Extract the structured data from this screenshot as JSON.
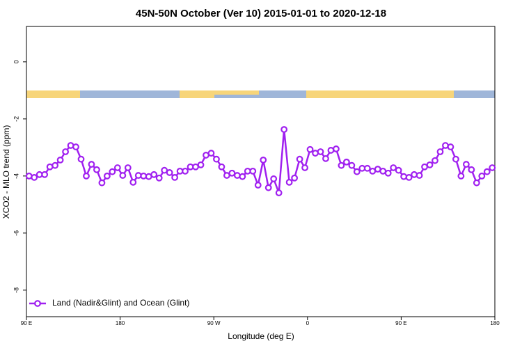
{
  "chart_data": {
    "type": "line",
    "title": "45N-50N October (Ver 10)   2015-01-01 to 2020-12-18",
    "xlabel": "Longitude (deg E)",
    "ylabel": "XCO2 - MLO trend (ppm)",
    "x": [
      92.5,
      97.5,
      102.5,
      107.5,
      112.5,
      117.5,
      122.5,
      127.5,
      132.5,
      137.5,
      142.5,
      147.5,
      152.5,
      157.5,
      162.5,
      167.5,
      172.5,
      177.5,
      182.5,
      187.5,
      192.5,
      197.5,
      202.5,
      207.5,
      212.5,
      217.5,
      222.5,
      227.5,
      232.5,
      237.5,
      242.5,
      247.5,
      252.5,
      257.5,
      262.5,
      267.5,
      272.5,
      277.5,
      282.5,
      287.5,
      292.5,
      297.5,
      302.5,
      307.5,
      312.5,
      317.5,
      322.5,
      327.5,
      332.5,
      337.5,
      342.5,
      347.5,
      352.5,
      357.5,
      362.5,
      367.5,
      372.5,
      377.5,
      382.5,
      387.5,
      392.5,
      397.5,
      402.5,
      407.5,
      412.5,
      417.5,
      422.5,
      427.5,
      432.5,
      437.5,
      442.5,
      447.5,
      452.5,
      457.5,
      462.5,
      467.5,
      472.5,
      477.5,
      482.5,
      487.5,
      492.5,
      497.5,
      502.5,
      507.5,
      512.5,
      517.5,
      522.5,
      527.5,
      532.5,
      537.5
    ],
    "series": [
      {
        "name": "Land (Nadir&Glint) and Ocean (Glint)",
        "color": "#a020f0",
        "values": [
          -4.0,
          -4.05,
          -3.95,
          -3.95,
          -3.68,
          -3.63,
          -3.44,
          -3.15,
          -2.93,
          -2.98,
          -3.41,
          -4.0,
          -3.59,
          -3.78,
          -4.24,
          -4.0,
          -3.85,
          -3.71,
          -3.98,
          -3.71,
          -4.22,
          -3.98,
          -4.0,
          -4.02,
          -3.95,
          -4.07,
          -3.8,
          -3.88,
          -4.05,
          -3.83,
          -3.83,
          -3.68,
          -3.68,
          -3.61,
          -3.27,
          -3.2,
          -3.41,
          -3.68,
          -3.98,
          -3.9,
          -3.98,
          -4.02,
          -3.83,
          -3.83,
          -4.32,
          -3.44,
          -4.41,
          -4.1,
          -4.59,
          -2.37,
          -4.22,
          -4.07,
          -3.41,
          -3.71,
          -3.07,
          -3.2,
          -3.15,
          -3.39,
          -3.1,
          -3.05,
          -3.63,
          -3.51,
          -3.63,
          -3.85,
          -3.73,
          -3.73,
          -3.83,
          -3.76,
          -3.83,
          -3.9,
          -3.71,
          -3.8,
          -4.02,
          -4.05,
          -3.95,
          -3.98,
          -3.68,
          -3.61,
          -3.46,
          -3.15,
          -2.93,
          -2.98,
          -3.41,
          -4.0,
          -3.59,
          -3.78,
          -4.24,
          -4.0,
          -3.85,
          -3.71
        ]
      }
    ],
    "xlim": [
      90,
      540
    ],
    "ylim": [
      -8.93,
      1.24
    ],
    "xticks": [
      {
        "value": 90,
        "label": "90 E"
      },
      180,
      {
        "value": 270,
        "label": "90 W"
      },
      {
        "value": 360,
        "label": "0"
      },
      {
        "value": 450,
        "label": "90 E"
      },
      {
        "value": 540,
        "label": "180"
      }
    ],
    "yticks": [
      0,
      -2,
      -4,
      -6,
      -8
    ],
    "legend": "bottom-left"
  }
}
